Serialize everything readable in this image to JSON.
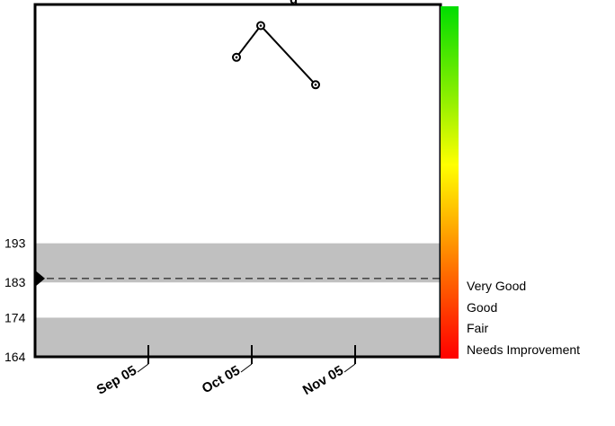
{
  "chart_data": {
    "type": "line",
    "title": "g",
    "x_labels": [
      "Sep 05",
      "Oct 05",
      "Nov 05"
    ],
    "series": [
      {
        "x": [
          "Sep 05",
          "Oct 05",
          "Nov 05"
        ],
        "y": [
          240.5,
          248.6,
          233.5
        ]
      }
    ],
    "y_ticks": [
      164,
      174,
      183,
      193
    ],
    "ylim": [
      164,
      254
    ],
    "target_value": 184,
    "bands": [
      {
        "from": 164,
        "to": 174,
        "color": "#c0c0c0"
      },
      {
        "from": 183,
        "to": 193,
        "color": "#c0c0c0"
      }
    ],
    "color_scale": {
      "colors": [
        "#ff0000",
        "#ff8800",
        "#ffff00",
        "#00dd00"
      ],
      "labels": [
        "Very Good",
        "Good",
        "Fair",
        "Needs Improvement"
      ]
    },
    "grid": false
  }
}
